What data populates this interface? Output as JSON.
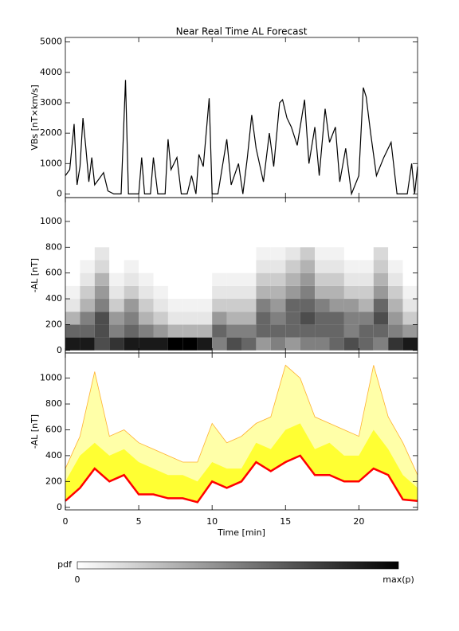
{
  "chart_data": [
    {
      "type": "line",
      "title": "Near Real Time AL Forecast",
      "y_label": "VBs [nT×km/s]",
      "color": "#000000",
      "x": [
        0,
        0.3,
        0.6,
        0.8,
        1.0,
        1.2,
        1.4,
        1.6,
        1.8,
        2.0,
        2.3,
        2.6,
        2.9,
        3.3,
        3.8,
        4.1,
        4.3,
        4.6,
        5.0,
        5.2,
        5.4,
        5.8,
        6.0,
        6.3,
        6.8,
        7.0,
        7.2,
        7.6,
        7.9,
        8.3,
        8.6,
        8.9,
        9.1,
        9.4,
        9.8,
        10.0,
        10.4,
        11.0,
        11.3,
        11.8,
        12.1,
        12.4,
        12.7,
        13.0,
        13.5,
        13.9,
        14.2,
        14.6,
        14.8,
        15.1,
        15.4,
        15.8,
        16.3,
        16.6,
        17.0,
        17.3,
        17.7,
        18.0,
        18.4,
        18.7,
        19.1,
        19.5,
        20.0,
        20.3,
        20.5,
        20.8,
        21.2,
        21.7,
        22.2,
        22.6,
        23.0,
        23.3,
        23.6,
        23.8,
        24.0
      ],
      "values": [
        600,
        800,
        2300,
        300,
        900,
        2500,
        1500,
        400,
        1200,
        300,
        500,
        700,
        100,
        0,
        0,
        3750,
        0,
        0,
        0,
        1200,
        0,
        0,
        1200,
        0,
        0,
        1800,
        800,
        1200,
        0,
        0,
        600,
        0,
        1300,
        900,
        3150,
        0,
        0,
        1800,
        300,
        1000,
        0,
        1200,
        2600,
        1500,
        400,
        2000,
        900,
        3000,
        3100,
        2500,
        2200,
        1600,
        3100,
        1000,
        2200,
        600,
        2800,
        1700,
        2200,
        400,
        1500,
        0,
        600,
        3500,
        3200,
        2000,
        600,
        1200,
        1700,
        0,
        0,
        0,
        1000,
        0,
        900
      ],
      "xlim": [
        0,
        24
      ],
      "xticks": [
        0,
        5,
        10,
        15,
        20
      ],
      "ylim": [
        -120,
        5150
      ],
      "yticks": [
        0,
        1000,
        2000,
        3000,
        4000,
        5000
      ]
    },
    {
      "type": "heatmap",
      "y_label": "-AL [nT]",
      "x_bins": [
        0,
        1,
        2,
        3,
        4,
        5,
        6,
        7,
        8,
        9,
        10,
        11,
        12,
        13,
        14,
        15,
        16,
        17,
        18,
        19,
        20,
        21,
        22,
        23,
        24
      ],
      "y_bins": [
        0,
        100,
        200,
        300,
        400,
        500,
        600,
        700,
        800
      ],
      "values": [
        [
          0.9,
          0.9,
          0.7,
          0.8,
          0.9,
          0.9,
          0.9,
          1,
          1,
          0.9,
          0.5,
          0.7,
          0.6,
          0.4,
          0.5,
          0.4,
          0.5,
          0.5,
          0.6,
          0.7,
          0.6,
          0.5,
          0.8,
          0.9
        ],
        [
          0.6,
          0.6,
          0.7,
          0.5,
          0.6,
          0.5,
          0.4,
          0.3,
          0.3,
          0.3,
          0.6,
          0.5,
          0.5,
          0.6,
          0.6,
          0.6,
          0.6,
          0.6,
          0.6,
          0.5,
          0.6,
          0.6,
          0.5,
          0.4
        ],
        [
          0.3,
          0.5,
          0.7,
          0.4,
          0.5,
          0.3,
          0.2,
          0.1,
          0.1,
          0.1,
          0.4,
          0.3,
          0.3,
          0.6,
          0.5,
          0.6,
          0.7,
          0.6,
          0.6,
          0.5,
          0.5,
          0.7,
          0.4,
          0.2
        ],
        [
          0.1,
          0.3,
          0.5,
          0.2,
          0.4,
          0.2,
          0.1,
          0.05,
          0.05,
          0.05,
          0.2,
          0.2,
          0.2,
          0.5,
          0.4,
          0.6,
          0.6,
          0.5,
          0.4,
          0.4,
          0.3,
          0.6,
          0.3,
          0.1
        ],
        [
          0.05,
          0.2,
          0.4,
          0.1,
          0.2,
          0.1,
          0.05,
          0,
          0,
          0,
          0.1,
          0.1,
          0.1,
          0.3,
          0.3,
          0.4,
          0.5,
          0.3,
          0.3,
          0.2,
          0.2,
          0.4,
          0.2,
          0.05
        ],
        [
          0,
          0.1,
          0.3,
          0.05,
          0.1,
          0.05,
          0,
          0,
          0,
          0,
          0.05,
          0.05,
          0.05,
          0.2,
          0.2,
          0.3,
          0.4,
          0.2,
          0.2,
          0.1,
          0.1,
          0.3,
          0.1,
          0
        ],
        [
          0,
          0.05,
          0.15,
          0,
          0.05,
          0,
          0,
          0,
          0,
          0,
          0,
          0,
          0,
          0.1,
          0.1,
          0.2,
          0.3,
          0.1,
          0.1,
          0.05,
          0.05,
          0.2,
          0.05,
          0
        ],
        [
          0,
          0,
          0.1,
          0,
          0,
          0,
          0,
          0,
          0,
          0,
          0,
          0,
          0,
          0.05,
          0.05,
          0.1,
          0.2,
          0.05,
          0.05,
          0,
          0,
          0.15,
          0,
          0
        ]
      ],
      "colorbar": {
        "label": "pdf",
        "min_label": "0",
        "max_label": "max(p)"
      },
      "xlim": [
        0,
        24
      ],
      "xticks": [
        0,
        5,
        10,
        15,
        20
      ],
      "ylim": [
        -20,
        1185
      ],
      "yticks": [
        0,
        200,
        400,
        600,
        800,
        1000
      ]
    },
    {
      "type": "area",
      "x_label": "Time [min]",
      "y_label": "-AL [nT]",
      "x": [
        0,
        1,
        2,
        3,
        4,
        5,
        6,
        7,
        8,
        9,
        10,
        11,
        12,
        13,
        14,
        15,
        16,
        17,
        18,
        19,
        20,
        21,
        22,
        23,
        24
      ],
      "series": [
        {
          "color": "#ff0000",
          "values": [
            50,
            150,
            300,
            200,
            250,
            100,
            100,
            70,
            70,
            40,
            200,
            150,
            200,
            350,
            280,
            350,
            400,
            250,
            250,
            200,
            200,
            300,
            250,
            60,
            50
          ]
        },
        {
          "color": "#ffff33",
          "values": [
            200,
            400,
            500,
            400,
            450,
            350,
            300,
            250,
            250,
            200,
            350,
            300,
            300,
            500,
            450,
            600,
            650,
            450,
            500,
            400,
            400,
            600,
            450,
            250,
            150
          ]
        },
        {
          "color": "#ffb030",
          "values": [
            300,
            550,
            1050,
            550,
            600,
            500,
            450,
            400,
            350,
            350,
            650,
            500,
            550,
            650,
            700,
            1100,
            1000,
            700,
            650,
            600,
            550,
            1100,
            700,
            500,
            250
          ]
        }
      ],
      "xlim": [
        0,
        24
      ],
      "xticks": [
        0,
        5,
        10,
        15,
        20
      ],
      "ylim": [
        -20,
        1195
      ],
      "yticks": [
        0,
        200,
        400,
        600,
        800,
        1000
      ]
    }
  ]
}
